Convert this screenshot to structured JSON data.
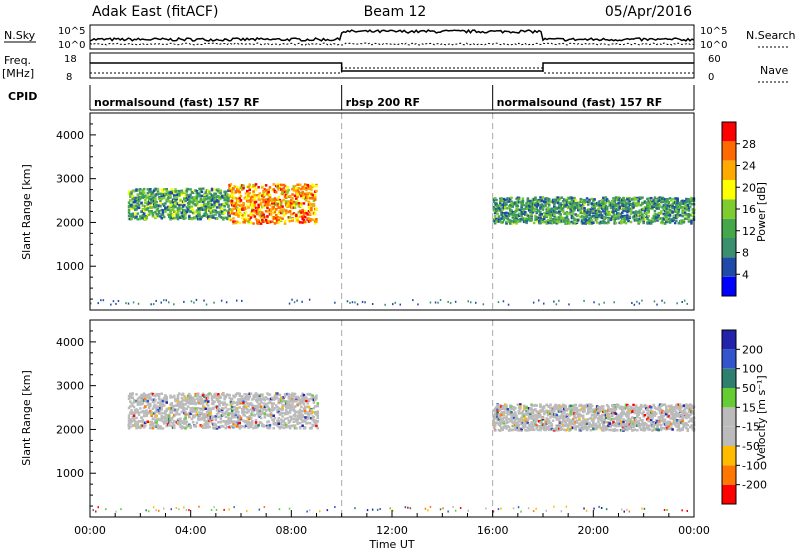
{
  "header": {
    "station": "Adak East (fitACF)",
    "beam": "Beam 12",
    "date": "05/Apr/2016"
  },
  "strip_panels": {
    "nsky_label": "N.Sky",
    "nsky_ticks": [
      "10^5",
      "10^0"
    ],
    "nsearch_label": "N.Search",
    "nsearch_ticks": [
      "10^5",
      "10^0"
    ],
    "freq_label": "Freq.",
    "freq_unit": "[MHz]",
    "freq_ticks": [
      "18",
      "8"
    ],
    "nave_label": "Nave",
    "nave_ticks": [
      "60",
      "0"
    ],
    "cpid_label": "CPID",
    "cpid_segments": [
      {
        "label": "normalsound (fast) 157 RF",
        "start_h": 0,
        "end_h": 10
      },
      {
        "label": "rbsp 200 RF",
        "start_h": 10,
        "end_h": 16
      },
      {
        "label": "normalsound (fast) 157 RF",
        "start_h": 16,
        "end_h": 24
      }
    ]
  },
  "x_axis": {
    "label": "Time UT",
    "range_h": [
      0,
      24
    ],
    "ticks": [
      {
        "h": 0,
        "label": "00:00"
      },
      {
        "h": 4,
        "label": "04:00"
      },
      {
        "h": 8,
        "label": "08:00"
      },
      {
        "h": 12,
        "label": "12:00"
      },
      {
        "h": 16,
        "label": "16:00"
      },
      {
        "h": 20,
        "label": "20:00"
      },
      {
        "h": 24,
        "label": "00:00"
      }
    ]
  },
  "colors": {
    "power": [
      "#0000ff",
      "#1f4aa8",
      "#3a8f6e",
      "#44a84a",
      "#7fcc2e",
      "#ffff00",
      "#ffaa00",
      "#ff6a00",
      "#ff0000"
    ],
    "velocity": [
      "#ff0000",
      "#ff7700",
      "#ffbb00",
      "#bbbbbb",
      "#bbbbbb",
      "#66cc33",
      "#2f7f6f",
      "#3355cc",
      "#2222aa"
    ]
  },
  "chart_data": [
    {
      "type": "heatmap",
      "name": "power",
      "ylabel": "Slant Range [km]",
      "ylim": [
        0,
        4500
      ],
      "yticks": [
        "1000",
        "2000",
        "3000",
        "4000"
      ],
      "colorbar_label": "Power [dB]",
      "colorbar_ticks": [
        "4",
        "8",
        "12",
        "16",
        "20",
        "24",
        "28"
      ],
      "colorbar_range": [
        0,
        32
      ],
      "echo_regions": [
        {
          "t0": 1.5,
          "t1": 5.5,
          "r_center": 2450,
          "r_halfwidth": 350,
          "level": 10
        },
        {
          "t0": 5.5,
          "t1": 9.0,
          "r_center": 2450,
          "r_halfwidth": 450,
          "level": 22
        },
        {
          "t0": 16.0,
          "t1": 24.0,
          "r_center": 2300,
          "r_halfwidth": 300,
          "level": 9
        }
      ],
      "ground_band": {
        "r_center": 200,
        "r_halfwidth": 60,
        "level": 8
      }
    },
    {
      "type": "heatmap",
      "name": "velocity",
      "ylabel": "Slant Range [km]",
      "ylim": [
        0,
        4500
      ],
      "yticks": [
        "1000",
        "2000",
        "3000",
        "4000"
      ],
      "colorbar_label": "Velocity [m s⁻¹]",
      "colorbar_ticks": [
        "200",
        "100",
        "50",
        "15",
        "-15",
        "-50",
        "-100",
        "-200"
      ],
      "colorbar_range": [
        -250,
        250
      ],
      "echo_regions": [
        {
          "t0": 1.5,
          "t1": 9.0,
          "r_center": 2450,
          "r_halfwidth": 400,
          "level": 0
        },
        {
          "t0": 16.0,
          "t1": 24.0,
          "r_center": 2300,
          "r_halfwidth": 300,
          "level": 0
        }
      ],
      "ground_band": {
        "r_center": 200,
        "r_halfwidth": 60,
        "level": 0
      }
    }
  ]
}
